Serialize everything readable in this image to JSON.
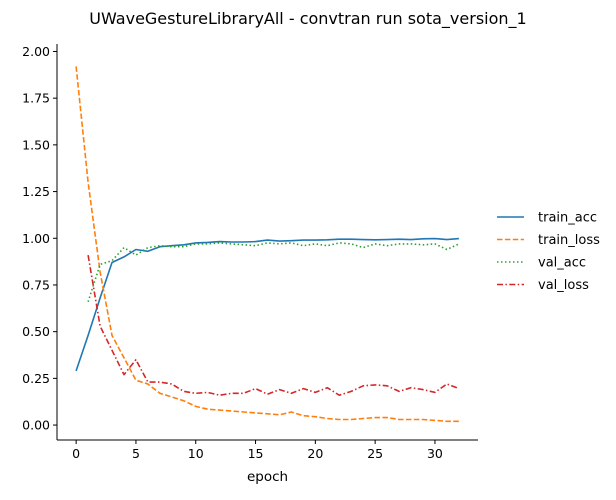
{
  "chart_data": {
    "type": "line",
    "title": "UWaveGestureLibraryAll - convtran run sota_version_1",
    "xlabel": "epoch",
    "ylabel": "",
    "xlim": [
      -1.6,
      33.6
    ],
    "ylim": [
      -0.08,
      2.04
    ],
    "xticks": [
      0,
      5,
      10,
      15,
      20,
      25,
      30
    ],
    "xtick_labels": [
      "0",
      "5",
      "10",
      "15",
      "20",
      "25",
      "30"
    ],
    "yticks": [
      0.0,
      0.25,
      0.5,
      0.75,
      1.0,
      1.25,
      1.5,
      1.75,
      2.0
    ],
    "ytick_labels": [
      "0.00",
      "0.25",
      "0.50",
      "0.75",
      "1.00",
      "1.25",
      "1.50",
      "1.75",
      "2.00"
    ],
    "grid": false,
    "legend_position": "right",
    "series": [
      {
        "name": "train_acc",
        "color": "#1f77b4",
        "dash": "solid",
        "x": [
          0,
          1,
          2,
          3,
          4,
          5,
          6,
          7,
          8,
          9,
          10,
          11,
          12,
          13,
          14,
          15,
          16,
          17,
          18,
          19,
          20,
          21,
          22,
          23,
          24,
          25,
          26,
          27,
          28,
          29,
          30,
          31,
          32
        ],
        "y": [
          0.29,
          0.48,
          0.68,
          0.87,
          0.9,
          0.94,
          0.93,
          0.955,
          0.96,
          0.965,
          0.975,
          0.978,
          0.982,
          0.98,
          0.98,
          0.982,
          0.99,
          0.985,
          0.987,
          0.99,
          0.99,
          0.992,
          0.995,
          0.995,
          0.993,
          0.992,
          0.993,
          0.995,
          0.993,
          0.997,
          0.998,
          0.993,
          0.998
        ]
      },
      {
        "name": "train_loss",
        "color": "#ff7f0e",
        "dash": "dashed",
        "x": [
          0,
          1,
          2,
          3,
          4,
          5,
          6,
          7,
          8,
          9,
          10,
          11,
          12,
          13,
          14,
          15,
          16,
          17,
          18,
          19,
          20,
          21,
          22,
          23,
          24,
          25,
          26,
          27,
          28,
          29,
          30,
          31,
          32
        ],
        "y": [
          1.92,
          1.3,
          0.82,
          0.48,
          0.36,
          0.24,
          0.22,
          0.17,
          0.15,
          0.13,
          0.1,
          0.085,
          0.08,
          0.075,
          0.07,
          0.065,
          0.06,
          0.055,
          0.07,
          0.05,
          0.045,
          0.035,
          0.03,
          0.03,
          0.035,
          0.04,
          0.04,
          0.03,
          0.03,
          0.03,
          0.025,
          0.02,
          0.02
        ]
      },
      {
        "name": "val_acc",
        "color": "#2ca02c",
        "dash": "dotted",
        "x": [
          1,
          2,
          3,
          4,
          5,
          6,
          7,
          8,
          9,
          10,
          11,
          12,
          13,
          14,
          15,
          16,
          17,
          18,
          19,
          20,
          21,
          22,
          23,
          24,
          25,
          26,
          27,
          28,
          29,
          30,
          31,
          32
        ],
        "y": [
          0.66,
          0.86,
          0.88,
          0.95,
          0.91,
          0.95,
          0.96,
          0.955,
          0.955,
          0.97,
          0.97,
          0.975,
          0.97,
          0.965,
          0.96,
          0.975,
          0.97,
          0.975,
          0.96,
          0.97,
          0.96,
          0.975,
          0.97,
          0.95,
          0.97,
          0.96,
          0.97,
          0.97,
          0.965,
          0.97,
          0.94,
          0.97
        ]
      },
      {
        "name": "val_loss",
        "color": "#d62728",
        "dash": "dashdot",
        "x": [
          1,
          2,
          3,
          4,
          5,
          6,
          7,
          8,
          9,
          10,
          11,
          12,
          13,
          14,
          15,
          16,
          17,
          18,
          19,
          20,
          21,
          22,
          23,
          24,
          25,
          26,
          27,
          28,
          29,
          30,
          31,
          32
        ],
        "y": [
          0.91,
          0.53,
          0.4,
          0.27,
          0.35,
          0.23,
          0.23,
          0.22,
          0.18,
          0.17,
          0.175,
          0.16,
          0.17,
          0.17,
          0.195,
          0.165,
          0.19,
          0.17,
          0.195,
          0.175,
          0.2,
          0.16,
          0.18,
          0.21,
          0.215,
          0.21,
          0.18,
          0.2,
          0.19,
          0.175,
          0.22,
          0.195
        ]
      }
    ]
  }
}
